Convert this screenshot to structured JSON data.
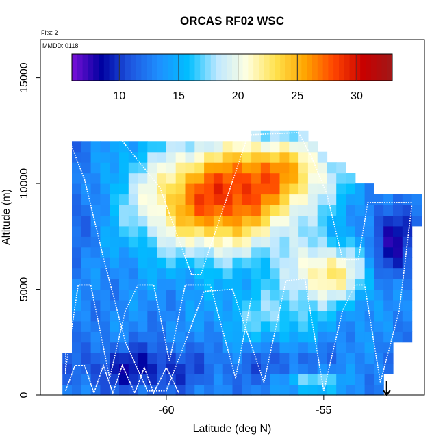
{
  "chart_data": {
    "type": "heatmap",
    "title": "ORCAS RF02 WSC",
    "xlabel": "Latitude (deg N)",
    "ylabel": "Altitude (m)",
    "annotations": {
      "flights": "Flts: 2",
      "mmdd": "MMDD: 0118"
    },
    "xlim": [
      -64.0,
      -51.8
    ],
    "ylim": [
      0,
      16800
    ],
    "x_ticks": [
      {
        "value": -60,
        "label": "-60"
      },
      {
        "value": -55,
        "label": "-55"
      }
    ],
    "y_ticks": [
      {
        "value": 0,
        "label": "0"
      },
      {
        "value": 5000,
        "label": "5000"
      },
      {
        "value": 10000,
        "label": "10000"
      },
      {
        "value": 15000,
        "label": "15000"
      }
    ],
    "colorbar": {
      "min": 6,
      "max": 33,
      "ticks": [
        {
          "value": 10,
          "label": "10"
        },
        {
          "value": 15,
          "label": "15"
        },
        {
          "value": 20,
          "label": "20"
        },
        {
          "value": 25,
          "label": "25"
        },
        {
          "value": 30,
          "label": "30"
        }
      ],
      "colors": [
        "#7b10d8",
        "#0000a0",
        "#1e56e0",
        "#1e90ff",
        "#00bfff",
        "#bfe8ff",
        "#ffffe0",
        "#ffe14c",
        "#ffa500",
        "#ff4500",
        "#c80000",
        "#a01818"
      ]
    },
    "grid": {
      "lat_start": -63.3,
      "lat_step": 0.3,
      "alt_start": 0,
      "alt_step": 500,
      "columns": 40,
      "rows": 26
    },
    "flight_track": [
      [
        -63.2,
        1000
      ],
      [
        -63.1,
        12200
      ],
      [
        -61.5,
        12200
      ],
      [
        -60.2,
        9800
      ],
      [
        -59.2,
        5700
      ],
      [
        -58.9,
        5700
      ],
      [
        -57.4,
        12300
      ],
      [
        -55.8,
        12400
      ],
      [
        -55.4,
        11300
      ],
      [
        -54.9,
        9500
      ],
      [
        -54.4,
        6400
      ],
      [
        -53.9,
        6400
      ],
      [
        -53.6,
        9100
      ],
      [
        -52.2,
        9100
      ]
    ],
    "flight_track_2": [
      [
        -63.1,
        12100
      ],
      [
        -62.6,
        10200
      ],
      [
        -62.0,
        6500
      ],
      [
        -61.3,
        2500
      ],
      [
        -60.6,
        200
      ],
      [
        -60.0,
        200
      ],
      [
        -59.5,
        2100
      ],
      [
        -58.8,
        4900
      ],
      [
        -57.9,
        5000
      ],
      [
        -56.9,
        600
      ],
      [
        -56.2,
        5400
      ],
      [
        -55.6,
        5500
      ],
      [
        -55.0,
        200
      ],
      [
        -54.4,
        4000
      ],
      [
        -54.0,
        5200
      ],
      [
        -53.7,
        5200
      ],
      [
        -53.2,
        600
      ],
      [
        -52.6,
        4000
      ],
      [
        -52.2,
        9000
      ]
    ],
    "sawtooth": [
      [
        -63.2,
        200
      ],
      [
        -62.9,
        1400
      ],
      [
        -62.6,
        1400
      ],
      [
        -62.3,
        100
      ],
      [
        -62.0,
        1400
      ],
      [
        -61.7,
        100
      ],
      [
        -61.4,
        1400
      ],
      [
        -61.0,
        100
      ],
      [
        -60.7,
        1300
      ],
      [
        -60.4,
        100
      ],
      [
        -60.0,
        1300
      ],
      [
        -59.6,
        100
      ]
    ],
    "mid_sawtooth": [
      [
        -63.2,
        1200
      ],
      [
        -62.8,
        5200
      ],
      [
        -62.4,
        5200
      ],
      [
        -61.8,
        800
      ],
      [
        -61.3,
        4000
      ],
      [
        -60.9,
        5200
      ],
      [
        -60.4,
        5200
      ],
      [
        -59.9,
        1600
      ],
      [
        -59.4,
        5200
      ],
      [
        -58.6,
        5200
      ],
      [
        -57.8,
        800
      ],
      [
        -57.3,
        4600
      ]
    ],
    "arrow_latitude": -53.0
  }
}
